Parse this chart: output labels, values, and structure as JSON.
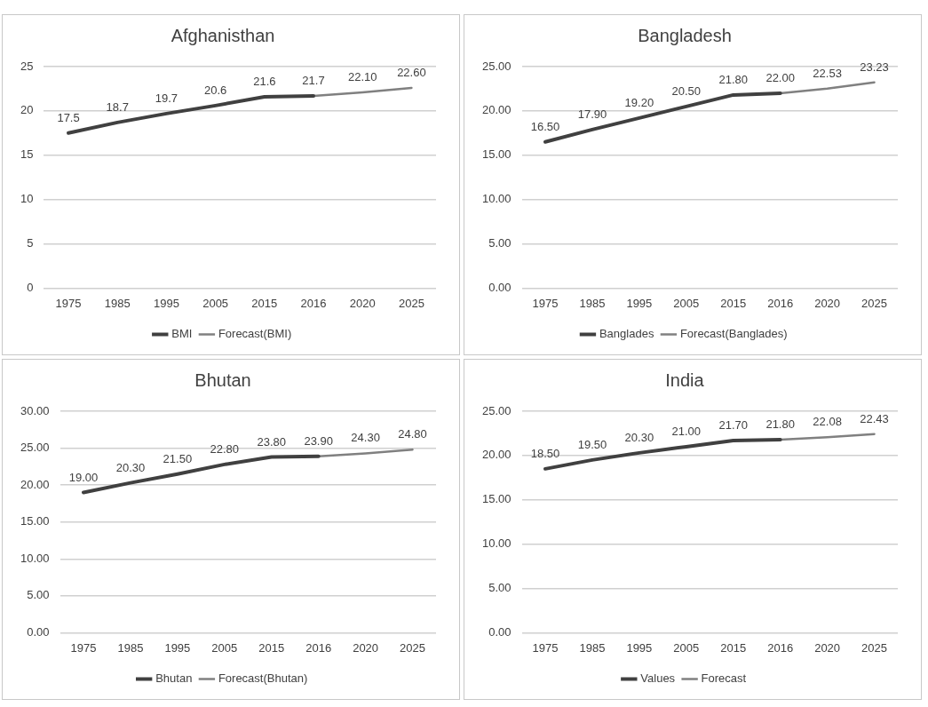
{
  "chart_data": [
    {
      "type": "line",
      "title": "Afghanisthan",
      "categories": [
        "1975",
        "1985",
        "1995",
        "2005",
        "2015",
        "2016",
        "2020",
        "2025"
      ],
      "ylim": [
        0,
        25
      ],
      "yticks": [
        0,
        5,
        10,
        15,
        20,
        25
      ],
      "grid": "y",
      "legend": "bottom",
      "series": [
        {
          "name": "BMI",
          "color": "#404040",
          "values": [
            17.5,
            18.7,
            19.7,
            20.6,
            21.6,
            21.7,
            null,
            null
          ],
          "value_labels": [
            "17.5",
            "18.7",
            "19.7",
            "20.6",
            "21.6",
            "21.7",
            null,
            null
          ]
        },
        {
          "name": "Forecast(BMI)",
          "color": "#808080",
          "values": [
            null,
            null,
            null,
            null,
            null,
            21.7,
            22.1,
            22.6
          ],
          "value_labels": [
            null,
            null,
            null,
            null,
            null,
            null,
            "22.10",
            "22.60"
          ]
        }
      ]
    },
    {
      "type": "line",
      "title": "Bangladesh",
      "categories": [
        "1975",
        "1985",
        "1995",
        "2005",
        "2015",
        "2016",
        "2020",
        "2025"
      ],
      "ylim": [
        0,
        25
      ],
      "yticks": [
        {
          "value": 0,
          "label": "0.00"
        },
        {
          "value": 5,
          "label": "5.00"
        },
        {
          "value": 10,
          "label": "10.00"
        },
        {
          "value": 15,
          "label": "15.00"
        },
        {
          "value": 20,
          "label": "20.00"
        },
        {
          "value": 25,
          "label": "25.00"
        }
      ],
      "grid": "y",
      "legend": "bottom",
      "series": [
        {
          "name": "Banglades",
          "color": "#404040",
          "values": [
            16.5,
            17.9,
            19.2,
            20.5,
            21.8,
            22.0,
            null,
            null
          ],
          "value_labels": [
            "16.50",
            "17.90",
            "19.20",
            "20.50",
            "21.80",
            "22.00",
            null,
            null
          ]
        },
        {
          "name": "Forecast(Banglades)",
          "color": "#808080",
          "values": [
            null,
            null,
            null,
            null,
            null,
            22.0,
            22.53,
            23.23
          ],
          "value_labels": [
            null,
            null,
            null,
            null,
            null,
            null,
            "22.53",
            "23.23"
          ]
        }
      ]
    },
    {
      "type": "line",
      "title": "Bhutan",
      "categories": [
        "1975",
        "1985",
        "1995",
        "2005",
        "2015",
        "2016",
        "2020",
        "2025"
      ],
      "ylim": [
        0,
        30
      ],
      "yticks": [
        {
          "value": 0,
          "label": "0.00"
        },
        {
          "value": 5,
          "label": "5.00"
        },
        {
          "value": 10,
          "label": "10.00"
        },
        {
          "value": 15,
          "label": "15.00"
        },
        {
          "value": 20,
          "label": "20.00"
        },
        {
          "value": 25,
          "label": "25.00"
        },
        {
          "value": 30,
          "label": "30.00"
        }
      ],
      "grid": "y",
      "legend": "bottom",
      "series": [
        {
          "name": "Bhutan",
          "color": "#404040",
          "values": [
            19.0,
            20.3,
            21.5,
            22.8,
            23.8,
            23.9,
            null,
            null
          ],
          "value_labels": [
            "19.00",
            "20.30",
            "21.50",
            "22.80",
            "23.80",
            "23.90",
            null,
            null
          ]
        },
        {
          "name": "Forecast(Bhutan)",
          "color": "#808080",
          "values": [
            null,
            null,
            null,
            null,
            null,
            23.9,
            24.3,
            24.8
          ],
          "value_labels": [
            null,
            null,
            null,
            null,
            null,
            null,
            "24.30",
            "24.80"
          ]
        }
      ]
    },
    {
      "type": "line",
      "title": "India",
      "categories": [
        "1975",
        "1985",
        "1995",
        "2005",
        "2015",
        "2016",
        "2020",
        "2025"
      ],
      "ylim": [
        0,
        25
      ],
      "yticks": [
        {
          "value": 0,
          "label": "0.00"
        },
        {
          "value": 5,
          "label": "5.00"
        },
        {
          "value": 10,
          "label": "10.00"
        },
        {
          "value": 15,
          "label": "15.00"
        },
        {
          "value": 20,
          "label": "20.00"
        },
        {
          "value": 25,
          "label": "25.00"
        }
      ],
      "grid": "y",
      "legend": "bottom",
      "series": [
        {
          "name": "Values",
          "color": "#404040",
          "values": [
            18.5,
            19.5,
            20.3,
            21.0,
            21.7,
            21.8,
            null,
            null
          ],
          "value_labels": [
            "18.50",
            "19.50",
            "20.30",
            "21.00",
            "21.70",
            "21.80",
            null,
            null
          ]
        },
        {
          "name": "Forecast",
          "color": "#808080",
          "values": [
            null,
            null,
            null,
            null,
            null,
            21.8,
            22.08,
            22.43
          ],
          "value_labels": [
            null,
            null,
            null,
            null,
            null,
            null,
            "22.08",
            "22.43"
          ]
        }
      ]
    }
  ]
}
